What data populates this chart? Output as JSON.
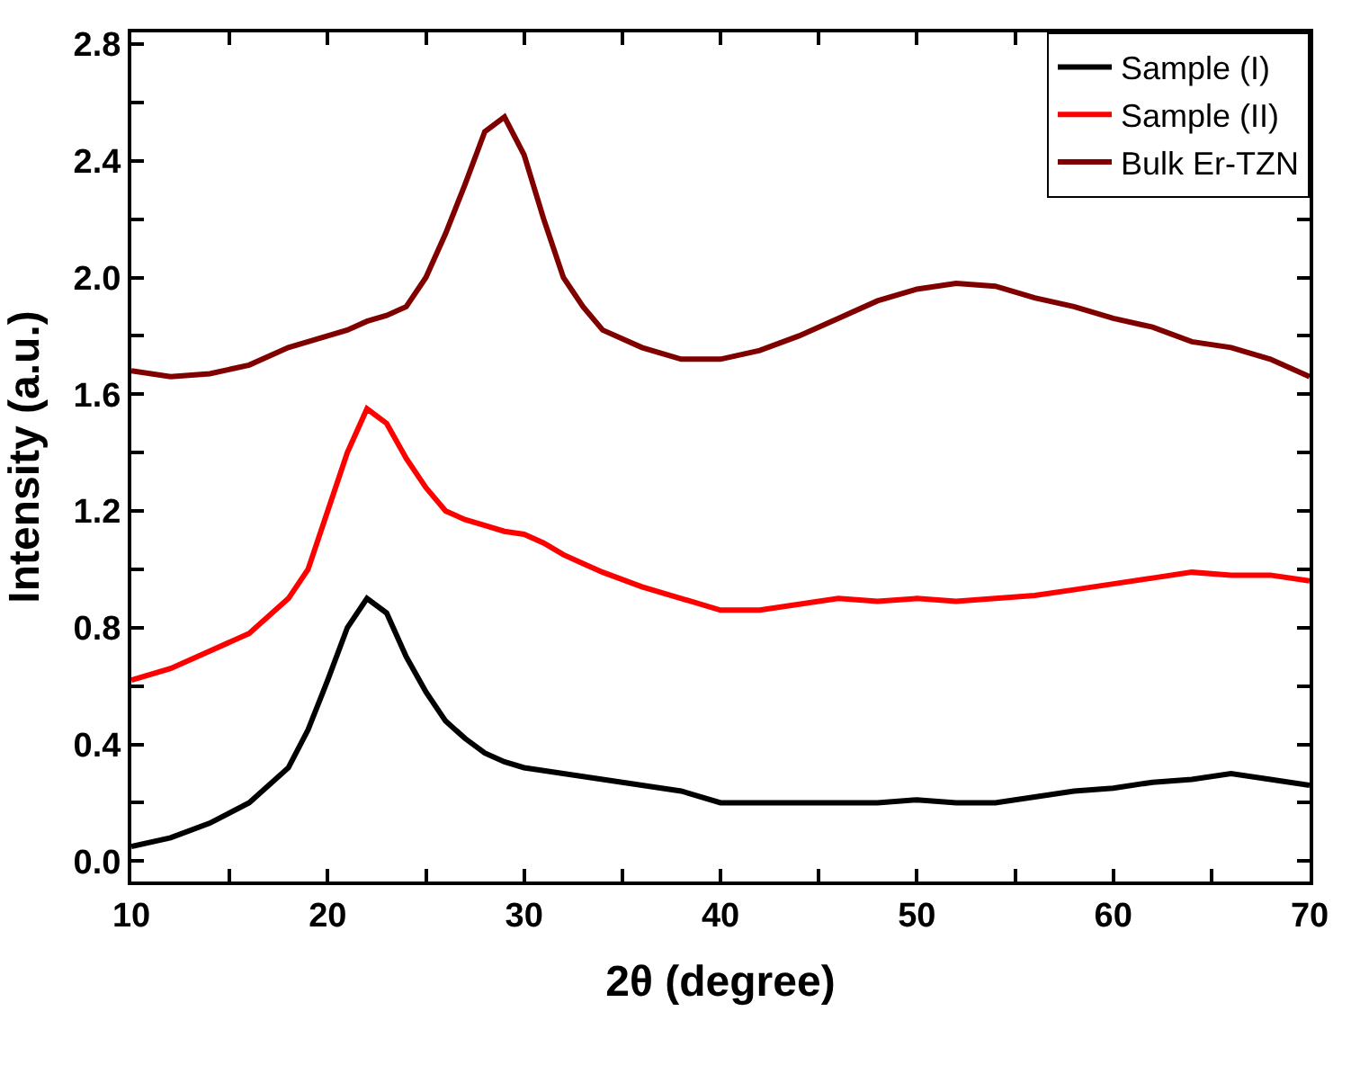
{
  "chart_data": {
    "type": "line",
    "xlabel": "2θ (degree)",
    "ylabel": "Intensity (a.u.)",
    "xlim": [
      10,
      70
    ],
    "ylim": [
      -0.07,
      2.84
    ],
    "xticks": [
      10,
      {
        "value": 15,
        "label": null
      },
      20,
      {
        "value": 25,
        "label": null
      },
      30,
      {
        "value": 35,
        "label": null
      },
      40,
      {
        "value": 45,
        "label": null
      },
      50,
      {
        "value": 55,
        "label": null
      },
      60,
      {
        "value": 65,
        "label": null
      },
      70
    ],
    "yticks": [
      {
        "value": 0,
        "label": "0.0"
      },
      {
        "value": 0.2,
        "label": null
      },
      {
        "value": 0.4,
        "label": "0.4"
      },
      {
        "value": 0.6,
        "label": null
      },
      {
        "value": 0.8,
        "label": "0.8"
      },
      {
        "value": 1.0,
        "label": null
      },
      {
        "value": 1.2,
        "label": "1.2"
      },
      {
        "value": 1.4,
        "label": null
      },
      {
        "value": 1.6,
        "label": "1.6"
      },
      {
        "value": 1.8,
        "label": null
      },
      {
        "value": 2.0,
        "label": "2.0"
      },
      {
        "value": 2.2,
        "label": null
      },
      {
        "value": 2.4,
        "label": "2.4"
      },
      {
        "value": 2.6,
        "label": null
      },
      {
        "value": 2.8,
        "label": "2.8"
      }
    ],
    "x": [
      10,
      12,
      14,
      16,
      18,
      19,
      20,
      21,
      22,
      23,
      24,
      25,
      26,
      27,
      28,
      29,
      30,
      31,
      32,
      33,
      34,
      36,
      38,
      40,
      42,
      44,
      46,
      48,
      50,
      52,
      54,
      56,
      58,
      60,
      62,
      64,
      66,
      68,
      70
    ],
    "legend": "top right",
    "marker": "none",
    "line_style": "solid",
    "series": [
      {
        "name": "Sample (I)",
        "color": "#000000",
        "values": [
          0.05,
          0.08,
          0.13,
          0.2,
          0.32,
          0.45,
          0.62,
          0.8,
          0.9,
          0.85,
          0.7,
          0.58,
          0.48,
          0.42,
          0.37,
          0.34,
          0.32,
          0.31,
          0.3,
          0.29,
          0.28,
          0.26,
          0.24,
          0.2,
          0.2,
          0.2,
          0.2,
          0.2,
          0.21,
          0.2,
          0.2,
          0.22,
          0.24,
          0.25,
          0.27,
          0.28,
          0.3,
          0.28,
          0.26
        ]
      },
      {
        "name": "Sample (II)",
        "color": "#ff0000",
        "values": [
          0.62,
          0.66,
          0.72,
          0.78,
          0.9,
          1.0,
          1.2,
          1.4,
          1.55,
          1.5,
          1.38,
          1.28,
          1.2,
          1.17,
          1.15,
          1.13,
          1.12,
          1.09,
          1.05,
          1.02,
          0.99,
          0.94,
          0.9,
          0.86,
          0.86,
          0.88,
          0.9,
          0.89,
          0.9,
          0.89,
          0.9,
          0.91,
          0.93,
          0.95,
          0.97,
          0.99,
          0.98,
          0.98,
          0.96
        ]
      },
      {
        "name": "Bulk Er-TZN",
        "color": "#800000",
        "values": [
          1.68,
          1.66,
          1.67,
          1.7,
          1.76,
          1.78,
          1.8,
          1.82,
          1.85,
          1.87,
          1.9,
          2.0,
          2.15,
          2.32,
          2.5,
          2.55,
          2.42,
          2.2,
          2.0,
          1.9,
          1.82,
          1.76,
          1.72,
          1.72,
          1.75,
          1.8,
          1.86,
          1.92,
          1.96,
          1.98,
          1.97,
          1.93,
          1.9,
          1.86,
          1.83,
          1.78,
          1.76,
          1.72,
          1.66
        ]
      }
    ]
  }
}
